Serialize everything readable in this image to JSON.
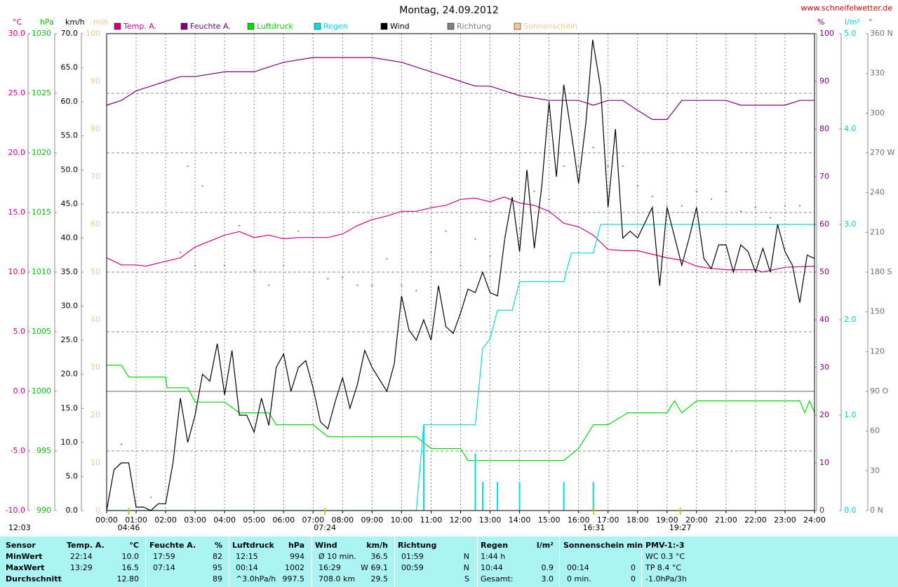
{
  "chart_data": {
    "type": "line",
    "title": "Montag, 24.09.2012",
    "source": "www.schneifelwetter.de",
    "grid": true,
    "xlim": [
      0,
      24
    ],
    "xticks": [
      {
        "value": 0,
        "label": "00:00"
      },
      {
        "value": 1,
        "label": "01:00"
      },
      {
        "value": 2,
        "label": "02:00"
      },
      {
        "value": 3,
        "label": "03:00"
      },
      {
        "value": 4,
        "label": "04:00"
      },
      {
        "value": 5,
        "label": "05:00"
      },
      {
        "value": 6,
        "label": "06:00"
      },
      {
        "value": 7,
        "label": "07:00"
      },
      {
        "value": 8,
        "label": "08:00"
      },
      {
        "value": 9,
        "label": "09:00"
      },
      {
        "value": 10,
        "label": "10:00"
      },
      {
        "value": 11,
        "label": "11:00"
      },
      {
        "value": 12,
        "label": "12:00"
      },
      {
        "value": 13,
        "label": "13:00"
      },
      {
        "value": 14,
        "label": "14:00"
      },
      {
        "value": 15,
        "label": "15:00"
      },
      {
        "value": 16,
        "label": "16:00"
      },
      {
        "value": 17,
        "label": "17:00"
      },
      {
        "value": 18,
        "label": "18:00"
      },
      {
        "value": 19,
        "label": "19:00"
      },
      {
        "value": 20,
        "label": "20:00"
      },
      {
        "value": 21,
        "label": "21:00"
      },
      {
        "value": 22,
        "label": "22:00"
      },
      {
        "value": 23,
        "label": "23:00"
      },
      {
        "value": 24,
        "label": "24:00"
      }
    ],
    "axes": {
      "temp": {
        "unit": "°C",
        "color": "#d4007f",
        "lim": [
          -10,
          30
        ],
        "ticks": [
          {
            "value": -10,
            "label": "-10.0"
          },
          {
            "value": -5,
            "label": "-5.0"
          },
          {
            "value": 0,
            "label": "0.0"
          },
          {
            "value": 5,
            "label": "5.0"
          },
          {
            "value": 10,
            "label": "10.0"
          },
          {
            "value": 15,
            "label": "15.0"
          },
          {
            "value": 20,
            "label": "20.0"
          },
          {
            "value": 25,
            "label": "25.0"
          },
          {
            "value": 30,
            "label": "30.0"
          }
        ]
      },
      "pres": {
        "unit": "hPa",
        "color": "#00c800",
        "lim": [
          990,
          1030
        ],
        "ticks": [
          990,
          995,
          1000,
          1005,
          1010,
          1015,
          1020,
          1025,
          1030
        ]
      },
      "wind": {
        "unit": "km/h",
        "color": "#000000",
        "lim": [
          0,
          70
        ],
        "ticks": [
          {
            "value": 0,
            "label": "0.0"
          },
          {
            "value": 5,
            "label": "5.0"
          },
          {
            "value": 10,
            "label": "10.0"
          },
          {
            "value": 15,
            "label": "15.0"
          },
          {
            "value": 20,
            "label": "20.0"
          },
          {
            "value": 25,
            "label": "25.0"
          },
          {
            "value": 30,
            "label": "30.0"
          },
          {
            "value": 35,
            "label": "35.0"
          },
          {
            "value": 40,
            "label": "40.0"
          },
          {
            "value": 45,
            "label": "45.0"
          },
          {
            "value": 50,
            "label": "50.0"
          },
          {
            "value": 55,
            "label": "55.0"
          },
          {
            "value": 60,
            "label": "60.0"
          },
          {
            "value": 65,
            "label": "65.0"
          },
          {
            "value": 70,
            "label": "70.0"
          }
        ]
      },
      "sun": {
        "unit": "min",
        "color": "#f5c88a",
        "lim": [
          0,
          100
        ],
        "ticks": [
          0,
          10,
          20,
          30,
          40,
          50,
          60,
          70,
          80,
          90,
          100
        ]
      },
      "hum": {
        "unit": "%",
        "color": "#800080",
        "lim": [
          0,
          100
        ],
        "ticks": [
          0,
          10,
          20,
          30,
          40,
          50,
          60,
          70,
          80,
          90,
          100
        ]
      },
      "rain": {
        "unit": "l/m²",
        "color": "#00d0d0",
        "lim": [
          0,
          5
        ],
        "ticks": [
          {
            "value": 0,
            "label": "0.0"
          },
          {
            "value": 1,
            "label": "1.0"
          },
          {
            "value": 2,
            "label": "2.0"
          },
          {
            "value": 3,
            "label": "3.0"
          },
          {
            "value": 4,
            "label": "4.0"
          },
          {
            "value": 5,
            "label": "5.0"
          }
        ]
      },
      "dir": {
        "unit": "°",
        "color": "#707070",
        "lim": [
          0,
          360
        ],
        "ticks": [
          {
            "value": 0,
            "label": "0 N"
          },
          30,
          60,
          {
            "value": 90,
            "label": "90 O"
          },
          120,
          150,
          {
            "value": 180,
            "label": "180 S"
          },
          210,
          240,
          {
            "value": 270,
            "label": "270 W"
          },
          300,
          330,
          {
            "value": 360,
            "label": "360 N"
          }
        ]
      }
    },
    "series": [
      {
        "name": "Temp. A.",
        "color": "#d4007f",
        "axis": "temp",
        "type": "line",
        "x": [
          0,
          0.5,
          1,
          1.33,
          2,
          2.5,
          3,
          3.5,
          4,
          4.5,
          5,
          5.5,
          6,
          6.5,
          7,
          7.5,
          8,
          8.5,
          9,
          9.5,
          10,
          10.5,
          11,
          11.5,
          12,
          12.5,
          13,
          13.48,
          14,
          14.5,
          15,
          15.5,
          16,
          16.5,
          17,
          17.5,
          18,
          18.5,
          19,
          19.5,
          20,
          20.5,
          21,
          22,
          22.23,
          23,
          24
        ],
        "values": [
          11.2,
          10.6,
          10.6,
          10.5,
          10.9,
          11.2,
          12.1,
          12.6,
          13.1,
          13.4,
          12.9,
          13.1,
          12.8,
          12.9,
          12.9,
          12.9,
          13.2,
          13.9,
          14.4,
          14.7,
          15.1,
          15.1,
          15.4,
          15.6,
          16.1,
          16.2,
          15.9,
          16.3,
          15.8,
          15.6,
          15.1,
          14.1,
          13.8,
          13.1,
          11.9,
          11.8,
          11.8,
          11.5,
          11.2,
          11.0,
          10.5,
          10.3,
          10.2,
          10.2,
          10.0,
          10.4,
          10.5
        ]
      },
      {
        "name": "Feuchte A.",
        "color": "#800080",
        "axis": "hum",
        "type": "line",
        "x": [
          0,
          0.5,
          1,
          1.5,
          2,
          2.5,
          3,
          4,
          4.5,
          5,
          5.5,
          6,
          7,
          7.23,
          8,
          9,
          10,
          11,
          11.5,
          12,
          12.5,
          13,
          13.5,
          14,
          15,
          16,
          16.5,
          17,
          17.5,
          17.98,
          18.5,
          19,
          19.5,
          20,
          21,
          21.5,
          23,
          23.5,
          24
        ],
        "values": [
          85,
          86,
          88,
          89,
          90,
          91,
          91,
          92,
          92,
          92,
          93,
          94,
          95,
          95,
          95,
          95,
          94,
          92,
          91,
          90,
          89,
          89,
          88,
          87,
          86,
          86,
          85,
          86,
          86,
          84,
          82,
          82,
          86,
          86,
          86,
          85,
          85,
          86,
          86
        ]
      },
      {
        "name": "Luftdruck",
        "color": "#00e000",
        "axis": "pres",
        "type": "line",
        "x": [
          0,
          0.5,
          0.75,
          2,
          2.05,
          2.75,
          3,
          4,
          4.5,
          5.5,
          5.75,
          7,
          7.5,
          10.5,
          11,
          12,
          12.25,
          15.5,
          16,
          16.5,
          17,
          17.67,
          19,
          19.25,
          19.5,
          20,
          23.5,
          23.67,
          23.83,
          24
        ],
        "values": [
          1002.2,
          1002.2,
          1001.2,
          1001.2,
          1000.3,
          1000.3,
          999.1,
          999.1,
          998.2,
          998.2,
          997.2,
          997.2,
          996.2,
          996.2,
          995.2,
          995.2,
          994.2,
          994.2,
          995.2,
          997.2,
          997.2,
          998.2,
          998.2,
          999.2,
          998.2,
          999.2,
          999.2,
          998.2,
          999.2,
          998.2
        ]
      },
      {
        "name": "Regen",
        "color": "#00e0e0",
        "axis": "rain",
        "type": "line",
        "x": [
          0,
          10.5,
          10.75,
          12.5,
          12.75,
          13,
          13.25,
          13.75,
          14,
          15.5,
          15.75,
          16.5,
          16.75,
          24
        ],
        "values": [
          0,
          0,
          0.9,
          0.9,
          1.7,
          1.8,
          2.1,
          2.1,
          2.4,
          2.4,
          2.7,
          2.7,
          3.0,
          3.0
        ],
        "bars": {
          "x": [
            10.75,
            12.5,
            12.75,
            13.25,
            14,
            15.5,
            16.5
          ],
          "values": [
            0.9,
            0.6,
            0.3,
            0.3,
            0.3,
            0.3,
            0.3
          ]
        }
      },
      {
        "name": "Wind",
        "color": "#000000",
        "axis": "wind",
        "type": "line",
        "x": [
          0,
          0.25,
          0.5,
          0.75,
          1,
          1.25,
          1.5,
          1.75,
          2,
          2.25,
          2.5,
          2.75,
          3,
          3.25,
          3.5,
          3.75,
          4,
          4.25,
          4.5,
          4.75,
          5,
          5.25,
          5.5,
          5.75,
          6,
          6.25,
          6.5,
          6.75,
          7,
          7.25,
          7.5,
          7.75,
          8,
          8.25,
          8.5,
          8.75,
          9,
          9.5,
          9.75,
          10,
          10.25,
          10.5,
          10.75,
          11,
          11.25,
          11.5,
          11.75,
          12,
          12.25,
          12.5,
          12.75,
          13,
          13.25,
          13.5,
          13.75,
          14,
          14.25,
          14.5,
          14.75,
          15,
          15.25,
          15.5,
          15.75,
          16,
          16.25,
          16.48,
          16.75,
          17,
          17.25,
          17.5,
          17.75,
          18,
          18.5,
          18.75,
          19,
          19.5,
          19.75,
          20,
          20.25,
          20.5,
          20.75,
          21,
          21.25,
          21.5,
          21.75,
          22,
          22.25,
          22.5,
          22.75,
          23,
          23.25,
          23.5,
          23.75,
          24
        ],
        "values": [
          0,
          6,
          7,
          7,
          0.5,
          0.5,
          0,
          1,
          1,
          7,
          16.5,
          10,
          14,
          20,
          19,
          24.5,
          17,
          23.5,
          14,
          14,
          11.5,
          16.5,
          12.5,
          21,
          23,
          17.5,
          21,
          22,
          18,
          13,
          12,
          16,
          19.5,
          15,
          18.5,
          23.5,
          21,
          17.5,
          21.5,
          31.5,
          26.5,
          25,
          28,
          25,
          33,
          27,
          26,
          29,
          32.5,
          32,
          35,
          32,
          31.5,
          40,
          46,
          38,
          50,
          38.5,
          47.5,
          60,
          49,
          62.5,
          55.5,
          48,
          57,
          69.1,
          62,
          44.5,
          56,
          40,
          41,
          40,
          44.5,
          33,
          44.5,
          36,
          40,
          44.5,
          37,
          35.5,
          39,
          39,
          35,
          39,
          38,
          35,
          38.5,
          35,
          42,
          38,
          36,
          30.5,
          37.5,
          37
        ]
      },
      {
        "name": "Richtung",
        "color": "#808080",
        "axis": "dir",
        "type": "scatter",
        "x": [
          0.5,
          1.5,
          2.5,
          2.75,
          3,
          3.25,
          4,
          4.5,
          5,
          5.5,
          6,
          6.5,
          7.5,
          8,
          8.5,
          9,
          9.5,
          10,
          10.5,
          11,
          11.5,
          12,
          12.5,
          13,
          13.5,
          14,
          14.5,
          15,
          15.5,
          16,
          16.5,
          17,
          17.5,
          18,
          18.5,
          19,
          19.5,
          20,
          20.5,
          21,
          21.5,
          22,
          22.5,
          23,
          23.5
        ],
        "values": [
          50,
          10,
          195,
          260,
          185,
          245,
          185,
          215,
          181,
          170,
          185,
          211,
          175,
          176,
          170,
          170,
          190,
          170,
          166,
          195,
          211,
          185,
          205,
          192,
          205,
          213,
          241,
          235,
          260,
          260,
          274,
          260,
          260,
          245,
          237,
          230,
          230,
          241,
          235,
          241,
          226,
          229,
          221,
          230,
          230
        ]
      },
      {
        "name": "Sonnenschein",
        "color": "#f5c88a",
        "axis": "sun",
        "type": "line",
        "x": [],
        "values": []
      }
    ],
    "day_length": "12:03",
    "markers": [
      {
        "label": "04:46",
        "x": 0.75
      },
      {
        "label": "07:24",
        "x": 7.4
      },
      {
        "label": "16:31",
        "x": 16.52
      },
      {
        "label": "19:27",
        "x": 19.45
      }
    ]
  },
  "table": {
    "header": [
      "Sensor",
      "Temp. A.",
      "°C",
      "Feuchte A.",
      "%",
      "Luftdruck",
      "hPa",
      "Wind",
      "km/h",
      "Richtung",
      null,
      "Regen",
      "l/m²",
      "Sonnenschein min",
      null,
      "PMV-1:-3"
    ],
    "rows": [
      {
        "cells": [
          "MinWert",
          "22:14",
          "10.0",
          "17:59",
          "82",
          "12:15",
          "994",
          "Ø 10 min.",
          "36.5",
          "01:59",
          "N",
          "1:44 h",
          null,
          null,
          null,
          "WC 0.3 °C"
        ]
      },
      {
        "cells": [
          "MaxWert",
          "13:29",
          "16.5",
          "07:14",
          "95",
          "00:14",
          "1002",
          "16:29",
          "W 69.1",
          "00:59",
          "N",
          "10:44",
          "0.9",
          "00:14",
          "0",
          "TP 8.4 °C"
        ]
      },
      {
        "cells": [
          "Durchschnitt",
          null,
          "12.80",
          null,
          "89",
          "^3.0hPa/h",
          "997.5",
          "708.0 km",
          "29.5",
          null,
          "S",
          "Gesamt:",
          "3.0",
          "0 min.",
          "0",
          "-1.0hPa/3h"
        ]
      }
    ]
  }
}
